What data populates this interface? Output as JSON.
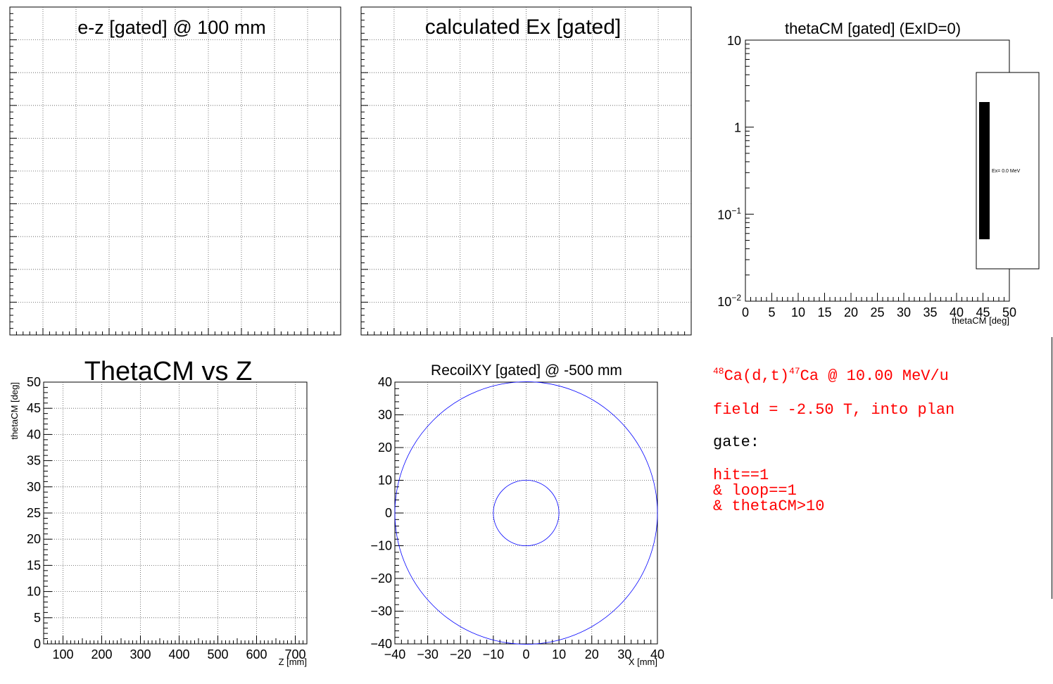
{
  "chart_data": [
    {
      "type": "heatmap",
      "title": "e-z [gated] @   100 mm",
      "xlabel": "",
      "ylabel": "",
      "grid": true,
      "ticks_shown": false,
      "values": []
    },
    {
      "type": "bar",
      "title": "calculated Ex [gated]",
      "xlabel": "",
      "ylabel": "",
      "grid": true,
      "ticks_shown": false,
      "values": []
    },
    {
      "type": "bar",
      "title": "thetaCM [gated] (ExID=0)",
      "xlabel": "thetaCM [deg]",
      "ylabel": "",
      "xlim": [
        0,
        50
      ],
      "ylim": [
        0.01,
        10
      ],
      "y_scale": "log",
      "grid": false,
      "x_ticks": [
        "0",
        "5",
        "10",
        "15",
        "20",
        "25",
        "30",
        "35",
        "40",
        "45",
        "50"
      ],
      "y_ticks": [
        {
          "base": "10",
          "exp": ""
        },
        {
          "base": "1",
          "exp": ""
        },
        {
          "base": "10",
          "exp": "−1"
        },
        {
          "base": "10",
          "exp": "−2"
        }
      ],
      "legend": {
        "placement": "right",
        "entries": [
          "Ex=  0.0 MeV"
        ]
      },
      "values": []
    },
    {
      "type": "scatter",
      "title": "ThetaCM vs Z",
      "xlabel": "Z [mm]",
      "ylabel": "thetaCM [deg]",
      "xlim": [
        50,
        730
      ],
      "ylim": [
        0,
        50
      ],
      "grid": true,
      "x_ticks": [
        "100",
        "200",
        "300",
        "400",
        "500",
        "600",
        "700"
      ],
      "y_ticks": [
        "0",
        "5",
        "10",
        "15",
        "20",
        "25",
        "30",
        "35",
        "40",
        "45",
        "50"
      ],
      "points": []
    },
    {
      "type": "scatter",
      "title": "RecoilXY [gated] @ -500 mm",
      "xlabel": "X [mm]",
      "ylabel": "",
      "xlim": [
        -40,
        40
      ],
      "ylim": [
        -40,
        40
      ],
      "grid": true,
      "x_ticks": [
        "−40",
        "−30",
        "−20",
        "−10",
        "0",
        "10",
        "20",
        "30",
        "40"
      ],
      "y_ticks": [
        "40",
        "30",
        "20",
        "10",
        "0",
        "−10",
        "−20",
        "−30",
        "−40"
      ],
      "circles": [
        {
          "cx": 0,
          "cy": 0,
          "r": 40,
          "color": "#0000ff"
        },
        {
          "cx": 0,
          "cy": 0,
          "r": 10,
          "color": "#0000ff"
        }
      ],
      "points": []
    }
  ],
  "info": {
    "reaction": {
      "a1": "48",
      "n1": "Ca(d,t)",
      "a2": "47",
      "n2": "Ca @ 10.00 MeV/u"
    },
    "field": "field = -2.50 T, into plan",
    "gate_label": "gate:",
    "gate_lines": [
      "hit==1",
      "& loop==1",
      "& thetaCM>10"
    ]
  },
  "colors": {
    "note": "#ff0000",
    "circle": "#0000ff",
    "axis": "#000000",
    "legend_fill": "#000000"
  }
}
